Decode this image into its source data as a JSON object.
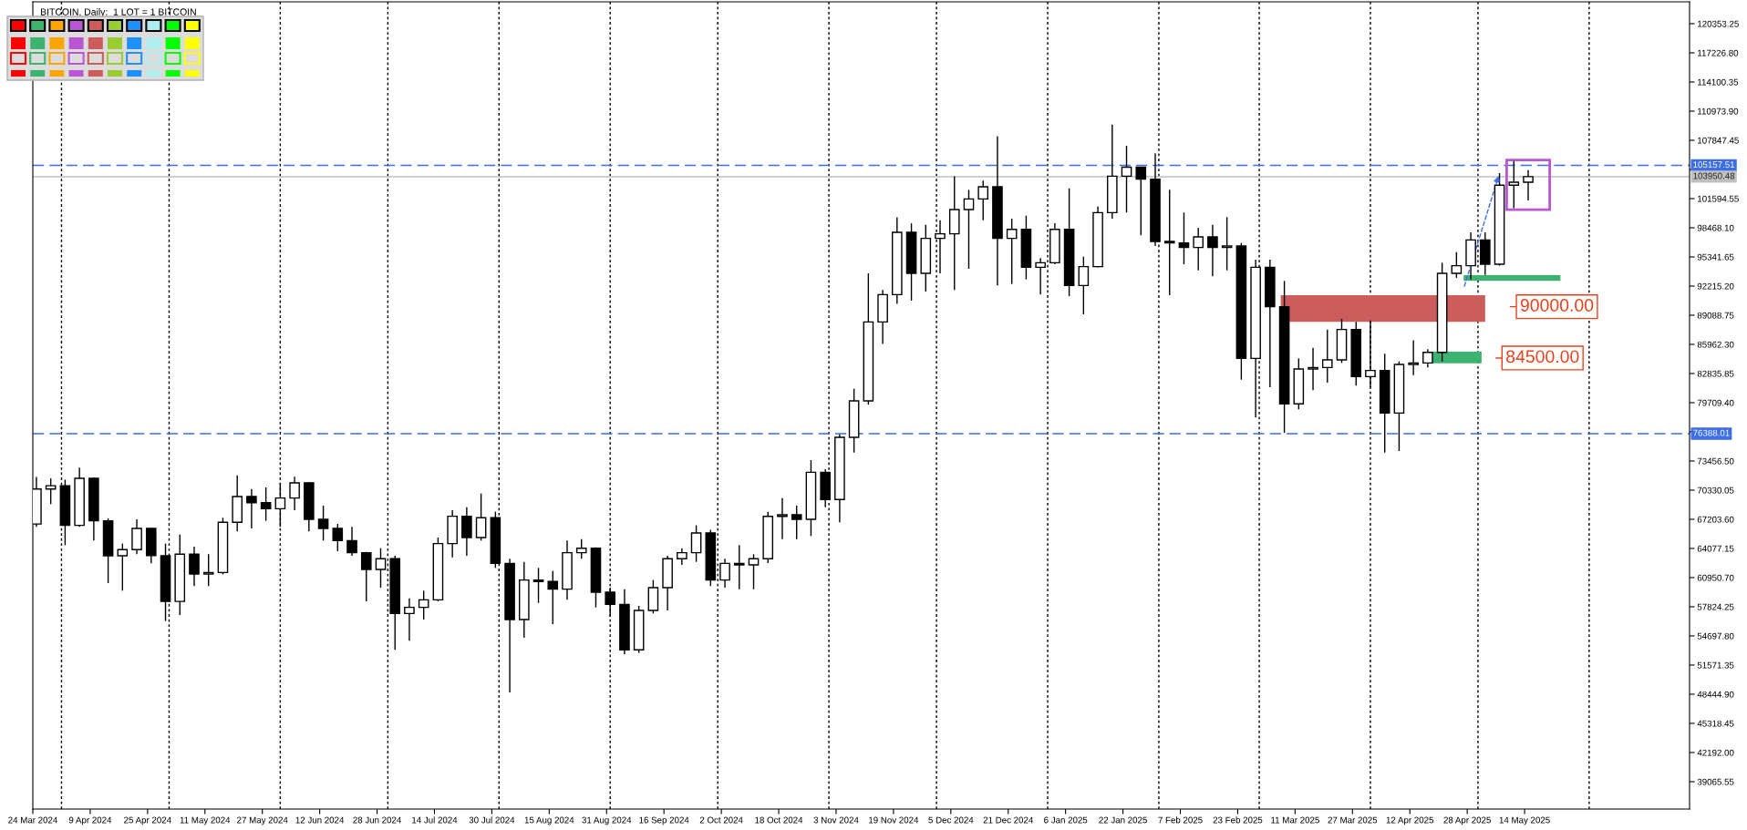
{
  "chart_data": {
    "type": "candlestick",
    "title": "BITCOIN, Daily:  1 LOT = 1 BITCOIN",
    "x": [
      "2024-03-25",
      "2024-03-29",
      "2024-04-02",
      "2024-04-06",
      "2024-04-10",
      "2024-04-14",
      "2024-04-18",
      "2024-04-22",
      "2024-04-26",
      "2024-04-30",
      "2024-05-04",
      "2024-05-08",
      "2024-05-12",
      "2024-05-16",
      "2024-05-20",
      "2024-05-24",
      "2024-05-28",
      "2024-06-01",
      "2024-06-05",
      "2024-06-09",
      "2024-06-13",
      "2024-06-17",
      "2024-06-21",
      "2024-06-25",
      "2024-06-29",
      "2024-07-03",
      "2024-07-07",
      "2024-07-11",
      "2024-07-15",
      "2024-07-19",
      "2024-07-23",
      "2024-07-27",
      "2024-07-31",
      "2024-08-04",
      "2024-08-08",
      "2024-08-12",
      "2024-08-16",
      "2024-08-20",
      "2024-08-24",
      "2024-08-28",
      "2024-09-01",
      "2024-09-05",
      "2024-09-09",
      "2024-09-13",
      "2024-09-17",
      "2024-09-21",
      "2024-09-25",
      "2024-09-29",
      "2024-10-03",
      "2024-10-07",
      "2024-10-11",
      "2024-10-15",
      "2024-10-19",
      "2024-10-23",
      "2024-10-27",
      "2024-10-31",
      "2024-11-04",
      "2024-11-08",
      "2024-11-12",
      "2024-11-16",
      "2024-11-20",
      "2024-11-24",
      "2024-11-28",
      "2024-12-02",
      "2024-12-06",
      "2024-12-10",
      "2024-12-14",
      "2024-12-18",
      "2024-12-22",
      "2024-12-26",
      "2024-12-30",
      "2025-01-03",
      "2025-01-07",
      "2025-01-11",
      "2025-01-15",
      "2025-01-19",
      "2025-01-23",
      "2025-01-27",
      "2025-01-31",
      "2025-02-04",
      "2025-02-08",
      "2025-02-12",
      "2025-02-16",
      "2025-02-20",
      "2025-02-24",
      "2025-02-28",
      "2025-03-04",
      "2025-03-08",
      "2025-03-12",
      "2025-03-16",
      "2025-03-20",
      "2025-03-24",
      "2025-03-28",
      "2025-04-01",
      "2025-04-05",
      "2025-04-09",
      "2025-04-13",
      "2025-04-17",
      "2025-04-21",
      "2025-04-25",
      "2025-04-29",
      "2025-05-03",
      "2025-05-07",
      "2025-05-11",
      "2025-05-15"
    ],
    "series": [
      {
        "color": "#000000",
        "ohlc": [
          [
            66700,
            71750,
            66400,
            70450
          ],
          [
            70450,
            71600,
            68830,
            70800
          ],
          [
            70800,
            71450,
            64430,
            66550
          ],
          [
            66550,
            72740,
            66400,
            71600
          ],
          [
            71600,
            71700,
            64920,
            67040
          ],
          [
            67040,
            67300,
            60360,
            63290
          ],
          [
            63290,
            64600,
            59550,
            63950
          ],
          [
            63950,
            67200,
            63460,
            66230
          ],
          [
            66230,
            66300,
            62480,
            63300
          ],
          [
            63300,
            64600,
            56290,
            58400
          ],
          [
            58400,
            65570,
            56940,
            63460
          ],
          [
            63460,
            64270,
            60040,
            61340
          ],
          [
            61340,
            63460,
            60040,
            61500
          ],
          [
            61500,
            67370,
            61300,
            66880
          ],
          [
            66880,
            71920,
            65900,
            69650
          ],
          [
            69650,
            70460,
            66230,
            68990
          ],
          [
            68990,
            70620,
            67040,
            68340
          ],
          [
            68340,
            71110,
            66390,
            69480
          ],
          [
            69480,
            71760,
            68180,
            71110
          ],
          [
            71110,
            71200,
            65900,
            67200
          ],
          [
            67200,
            68670,
            64920,
            66230
          ],
          [
            66230,
            66710,
            63780,
            64920
          ],
          [
            64920,
            66390,
            63290,
            63620
          ],
          [
            63620,
            63700,
            58410,
            61830
          ],
          [
            61830,
            64100,
            59870,
            62970
          ],
          [
            62970,
            63290,
            53200,
            57100
          ],
          [
            57100,
            58730,
            54180,
            57760
          ],
          [
            57760,
            59550,
            56450,
            58570
          ],
          [
            58570,
            65250,
            58400,
            64600
          ],
          [
            64600,
            68180,
            63130,
            67530
          ],
          [
            67530,
            68500,
            63290,
            65250
          ],
          [
            65250,
            69970,
            64920,
            67370
          ],
          [
            67370,
            68020,
            61990,
            62480
          ],
          [
            62480,
            62970,
            48640,
            56450
          ],
          [
            56450,
            62640,
            54500,
            60690
          ],
          [
            60690,
            61990,
            58240,
            60530
          ],
          [
            60530,
            61660,
            55970,
            59710
          ],
          [
            59710,
            64920,
            58570,
            63620
          ],
          [
            63620,
            65080,
            62970,
            64100
          ],
          [
            64100,
            64200,
            57760,
            59390
          ],
          [
            59390,
            59870,
            56780,
            58080
          ],
          [
            58080,
            59710,
            52710,
            53200
          ],
          [
            53200,
            57920,
            52870,
            57430
          ],
          [
            57430,
            60690,
            57110,
            59870
          ],
          [
            59870,
            63290,
            57430,
            62970
          ],
          [
            62970,
            64100,
            62320,
            63620
          ],
          [
            63620,
            66550,
            62640,
            65740
          ],
          [
            65740,
            66070,
            60040,
            60690
          ],
          [
            60690,
            62970,
            59870,
            62480
          ],
          [
            62480,
            64430,
            59710,
            62320
          ],
          [
            62320,
            63460,
            59710,
            62970
          ],
          [
            62970,
            68010,
            62500,
            67520
          ],
          [
            67520,
            69470,
            65080,
            67690
          ],
          [
            67690,
            68660,
            65080,
            67200
          ],
          [
            67200,
            73550,
            65410,
            72250
          ],
          [
            72250,
            72570,
            68500,
            69320
          ],
          [
            69320,
            76320,
            66880,
            75990
          ],
          [
            75990,
            81200,
            74360,
            79900
          ],
          [
            79900,
            93580,
            79500,
            88370
          ],
          [
            88370,
            91790,
            86000,
            91300
          ],
          [
            91300,
            99600,
            90320,
            97980
          ],
          [
            97980,
            98950,
            90650,
            93580
          ],
          [
            93580,
            98790,
            91630,
            97330
          ],
          [
            97330,
            99280,
            93580,
            97820
          ],
          [
            97820,
            104000,
            91790,
            100420
          ],
          [
            100420,
            102530,
            94070,
            101560
          ],
          [
            101560,
            103520,
            99280,
            102860
          ],
          [
            102860,
            108300,
            92280,
            97330
          ],
          [
            97330,
            99440,
            92440,
            98300
          ],
          [
            98300,
            99770,
            92930,
            94230
          ],
          [
            94230,
            95210,
            91300,
            94720
          ],
          [
            94720,
            98950,
            94560,
            98300
          ],
          [
            98300,
            102700,
            91140,
            92280
          ],
          [
            92280,
            95370,
            89190,
            94300
          ],
          [
            94300,
            100740,
            94230,
            100090
          ],
          [
            100090,
            109540,
            99440,
            104000
          ],
          [
            104000,
            107260,
            100100,
            104970
          ],
          [
            104970,
            105000,
            97650,
            103680
          ],
          [
            103680,
            106450,
            96510,
            97000
          ],
          [
            97000,
            102540,
            91240,
            96840
          ],
          [
            96840,
            100100,
            94560,
            96350
          ],
          [
            96350,
            98470,
            93910,
            97490
          ],
          [
            97490,
            98790,
            93260,
            96350
          ],
          [
            96350,
            99610,
            93910,
            96510
          ],
          [
            96510,
            96840,
            82180,
            84460
          ],
          [
            84460,
            95050,
            78110,
            94230
          ],
          [
            94230,
            95050,
            81370,
            90000
          ],
          [
            90000,
            92770,
            76480,
            79580
          ],
          [
            79580,
            84460,
            79000,
            83320
          ],
          [
            83320,
            85600,
            81040,
            83480
          ],
          [
            83480,
            87560,
            81850,
            84300
          ],
          [
            84300,
            88700,
            83970,
            87560
          ],
          [
            87560,
            88370,
            81530,
            82510
          ],
          [
            82510,
            88530,
            81370,
            83160
          ],
          [
            83160,
            84950,
            74370,
            78600
          ],
          [
            78600,
            84140,
            74530,
            83810
          ],
          [
            83810,
            86410,
            82670,
            83970
          ],
          [
            83970,
            85440,
            83500,
            85110
          ],
          [
            85110,
            94720,
            84140,
            93580
          ],
          [
            93580,
            95860,
            93100,
            94400
          ],
          [
            94400,
            97980,
            92930,
            97160
          ],
          [
            97160,
            97980,
            93420,
            94560
          ],
          [
            94560,
            104330,
            94400,
            103030
          ],
          [
            103030,
            105630,
            100580,
            103350
          ],
          [
            103350,
            104650,
            101400,
            103950
          ]
        ]
      }
    ],
    "xlim": [
      "2024-03-24",
      "2025-06-29"
    ],
    "xticks": [
      {
        "value": "2024-03-24",
        "label": "24 Mar 2024"
      },
      {
        "value": "2024-04-09",
        "label": "9 Apr 2024"
      },
      {
        "value": "2024-04-25",
        "label": "25 Apr 2024"
      },
      {
        "value": "2024-05-11",
        "label": "11 May 2024"
      },
      {
        "value": "2024-05-27",
        "label": "27 May 2024"
      },
      {
        "value": "2024-06-12",
        "label": "12 Jun 2024"
      },
      {
        "value": "2024-06-28",
        "label": "28 Jun 2024"
      },
      {
        "value": "2024-07-14",
        "label": "14 Jul 2024"
      },
      {
        "value": "2024-07-30",
        "label": "30 Jul 2024"
      },
      {
        "value": "2024-08-15",
        "label": "15 Aug 2024"
      },
      {
        "value": "2024-08-31",
        "label": "31 Aug 2024"
      },
      {
        "value": "2024-09-16",
        "label": "16 Sep 2024"
      },
      {
        "value": "2024-10-02",
        "label": "2 Oct 2024"
      },
      {
        "value": "2024-10-18",
        "label": "18 Oct 2024"
      },
      {
        "value": "2024-11-03",
        "label": "3 Nov 2024"
      },
      {
        "value": "2024-11-19",
        "label": "19 Nov 2024"
      },
      {
        "value": "2024-12-05",
        "label": "5 Dec 2024"
      },
      {
        "value": "2024-12-21",
        "label": "21 Dec 2024"
      },
      {
        "value": "2025-01-06",
        "label": "6 Jan 2025"
      },
      {
        "value": "2025-01-22",
        "label": "22 Jan 2025"
      },
      {
        "value": "2025-02-07",
        "label": "7 Feb 2025"
      },
      {
        "value": "2025-02-23",
        "label": "23 Feb 2025"
      },
      {
        "value": "2025-03-11",
        "label": "11 Mar 2025"
      },
      {
        "value": "2025-03-27",
        "label": "27 Mar 2025"
      },
      {
        "value": "2025-04-12",
        "label": "12 Apr 2025"
      },
      {
        "value": "2025-04-28",
        "label": "28 Apr 2025"
      },
      {
        "value": "2025-05-14",
        "label": "14 May 2025"
      }
    ],
    "ylim": [
      36130,
      122700
    ],
    "yticks": [
      {
        "value": 120353.25,
        "label": "120353.25"
      },
      {
        "value": 117226.8,
        "label": "117226.80"
      },
      {
        "value": 114100.35,
        "label": "114100.35"
      },
      {
        "value": 110973.9,
        "label": "110973.90"
      },
      {
        "value": 107847.45,
        "label": "107847.45"
      },
      {
        "value": 104721.0,
        "label": null
      },
      {
        "value": 101594.55,
        "label": "101594.55"
      },
      {
        "value": 98468.1,
        "label": "98468.10"
      },
      {
        "value": 95341.65,
        "label": "95341.65"
      },
      {
        "value": 92215.2,
        "label": "92215.20"
      },
      {
        "value": 89088.75,
        "label": "89088.75"
      },
      {
        "value": 85962.3,
        "label": "85962.30"
      },
      {
        "value": 82835.85,
        "label": "82835.85"
      },
      {
        "value": 79709.4,
        "label": "79709.40"
      },
      {
        "value": 76582.95,
        "label": null
      },
      {
        "value": 73456.5,
        "label": "73456.50"
      },
      {
        "value": 70330.05,
        "label": "70330.05"
      },
      {
        "value": 67203.6,
        "label": "67203.60"
      },
      {
        "value": 64077.15,
        "label": "64077.15"
      },
      {
        "value": 60950.7,
        "label": "60950.70"
      },
      {
        "value": 57824.25,
        "label": "57824.25"
      },
      {
        "value": 54697.8,
        "label": "54697.80"
      },
      {
        "value": 51571.35,
        "label": "51571.35"
      },
      {
        "value": 48444.9,
        "label": "48444.90"
      },
      {
        "value": 45318.45,
        "label": "45318.45"
      },
      {
        "value": 42192.0,
        "label": "42192.00"
      },
      {
        "value": 39065.55,
        "label": "39065.55"
      }
    ],
    "ref_lines": [
      {
        "axis": "y",
        "value": 105157.51,
        "label": "105157.51",
        "color": "#3c6ee6",
        "line_style": "dashed"
      },
      {
        "axis": "y",
        "value": 103950.48,
        "label": "103950.48",
        "color": "#c0c0c0",
        "line_style": "solid"
      },
      {
        "axis": "y",
        "value": 76388.01,
        "label": "76388.01",
        "color": "#3c6ee6",
        "line_style": "dashed"
      },
      {
        "axis": "x",
        "value": "2024-04-01",
        "color": "#000000",
        "line_style": "dotted"
      },
      {
        "axis": "x",
        "value": "2024-05-01",
        "color": "#000000",
        "line_style": "dotted"
      },
      {
        "axis": "x",
        "value": "2024-06-01",
        "color": "#000000",
        "line_style": "dotted"
      },
      {
        "axis": "x",
        "value": "2024-07-01",
        "color": "#000000",
        "line_style": "dotted"
      },
      {
        "axis": "x",
        "value": "2024-08-01",
        "color": "#000000",
        "line_style": "dotted"
      },
      {
        "axis": "x",
        "value": "2024-09-01",
        "color": "#000000",
        "line_style": "dotted"
      },
      {
        "axis": "x",
        "value": "2024-10-01",
        "color": "#000000",
        "line_style": "dotted"
      },
      {
        "axis": "x",
        "value": "2024-11-01",
        "color": "#000000",
        "line_style": "dotted"
      },
      {
        "axis": "x",
        "value": "2024-12-01",
        "color": "#000000",
        "line_style": "dotted"
      },
      {
        "axis": "x",
        "value": "2025-01-01",
        "color": "#000000",
        "line_style": "dotted"
      },
      {
        "axis": "x",
        "value": "2025-02-01",
        "color": "#000000",
        "line_style": "dotted"
      },
      {
        "axis": "x",
        "value": "2025-03-01",
        "color": "#000000",
        "line_style": "dotted"
      },
      {
        "axis": "x",
        "value": "2025-04-01",
        "color": "#000000",
        "line_style": "dotted"
      },
      {
        "axis": "x",
        "value": "2025-05-01",
        "color": "#000000",
        "line_style": "dotted"
      },
      {
        "axis": "x",
        "value": "2025-06-01",
        "color": "#000000",
        "line_style": "dotted"
      }
    ],
    "annotations": [
      "90000.00",
      "84500.00"
    ]
  }
}
